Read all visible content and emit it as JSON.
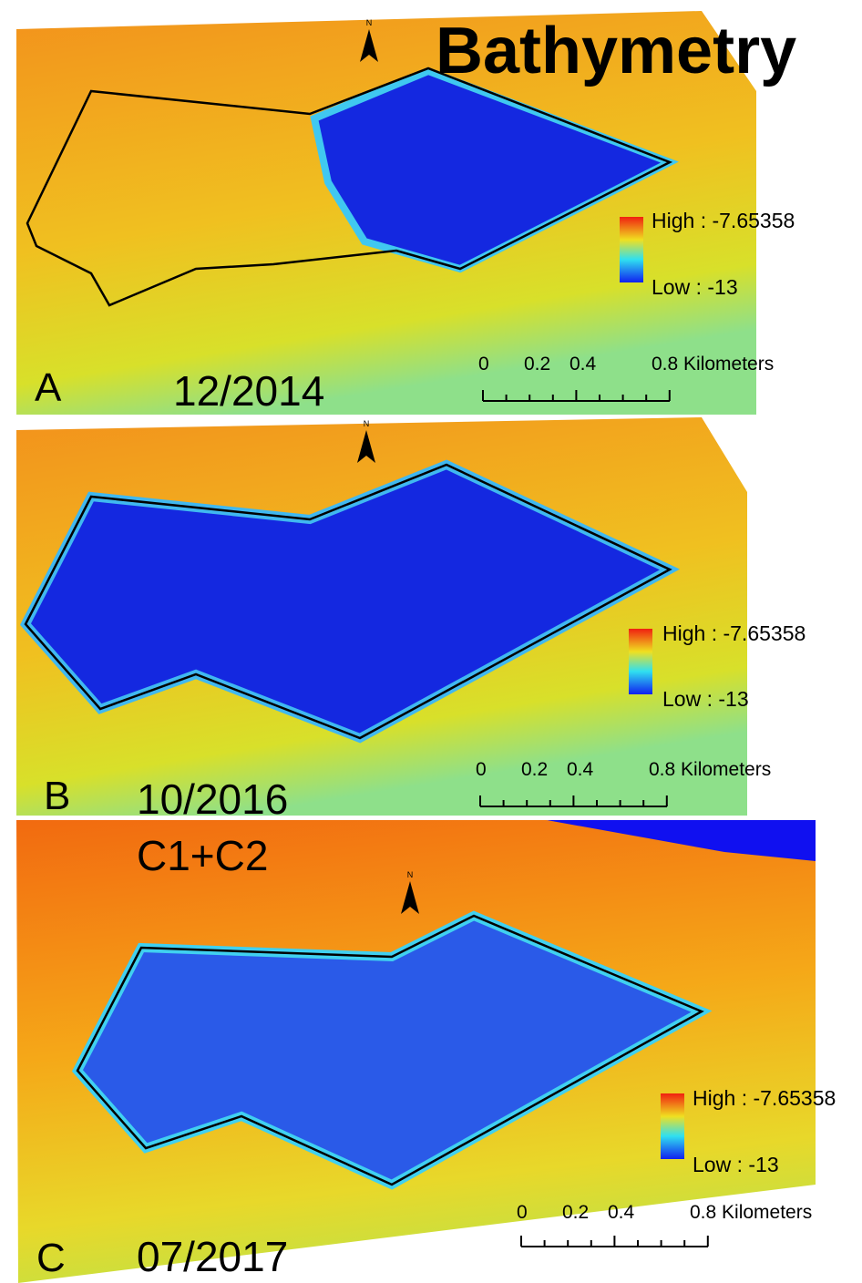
{
  "title": "Bathymetry",
  "panels": [
    {
      "letter": "A",
      "date": "12/2014",
      "north": "N",
      "legend": {
        "high": "High : -7.65358",
        "low": "Low : -13"
      },
      "scale_labels": [
        "0",
        "0.2",
        "0.4",
        "0.8 Kilometers"
      ]
    },
    {
      "letter": "B",
      "date": "10/2016",
      "north": "N",
      "legend": {
        "high": "High : -7.65358",
        "low": "Low : -13"
      },
      "scale_labels": [
        "0",
        "0.2",
        "0.4",
        "0.8 Kilometers"
      ]
    },
    {
      "letter": "C",
      "date": "07/2017",
      "note": "C1+C2",
      "north": "N",
      "legend": {
        "high": "High : -7.65358",
        "low": "Low : -13"
      },
      "scale_labels": [
        "0",
        "0.2",
        "0.4",
        "0.8 Kilometers"
      ]
    }
  ]
}
